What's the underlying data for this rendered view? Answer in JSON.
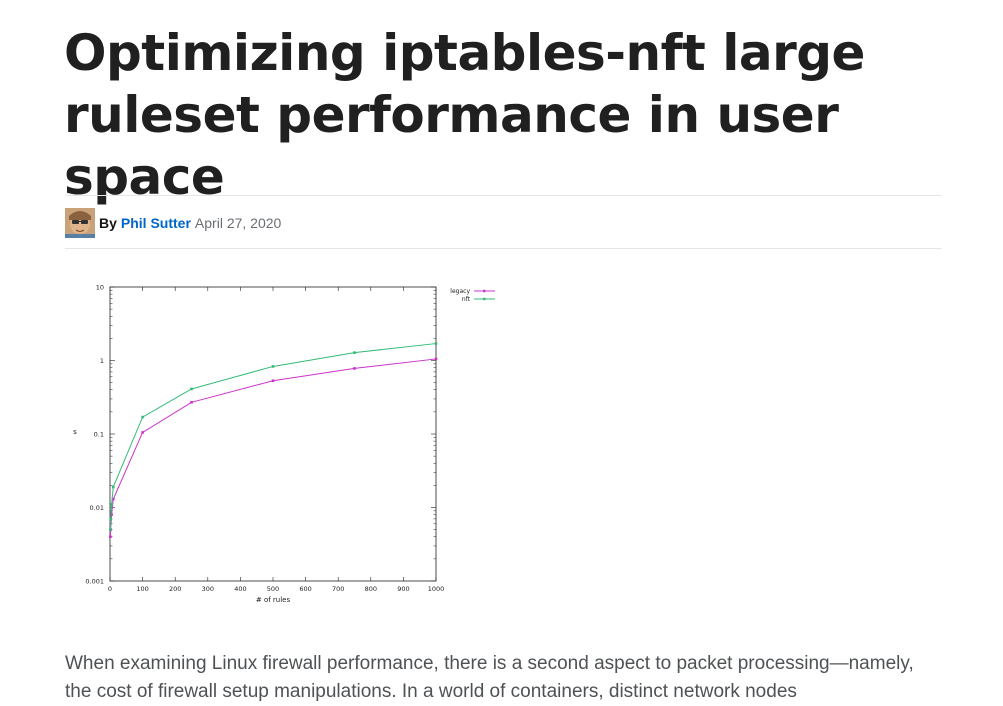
{
  "article": {
    "title": "Optimizing iptables-nft large ruleset performance in user space",
    "byline": {
      "by_label": "By",
      "author": "Phil Sutter",
      "date": "April 27, 2020"
    },
    "body_text": "When examining Linux firewall performance, there is a second aspect to packet processing—namely, the cost of firewall setup manipulations. In a world of containers, distinct network nodes"
  },
  "colors": {
    "legacy": "#cc33cc",
    "nft": "#33bb77",
    "link": "#0066cc"
  },
  "chart_data": {
    "type": "line",
    "title": "",
    "xlabel": "# of rules",
    "ylabel": "s",
    "y_scale": "log",
    "xlim": [
      0,
      1000
    ],
    "ylim": [
      0.001,
      10
    ],
    "x_ticks": [
      "0",
      "100",
      "200",
      "300",
      "400",
      "500",
      "600",
      "700",
      "800",
      "900",
      "1000"
    ],
    "y_ticks": [
      "0.001",
      "0.01",
      "0.1",
      "1",
      "10"
    ],
    "legend_position": "outside-top-right",
    "series": [
      {
        "name": "legacy",
        "x": [
          1,
          2,
          5,
          10,
          100,
          250,
          500,
          750,
          1000
        ],
        "y": [
          0.004,
          0.005,
          0.008,
          0.013,
          0.105,
          0.27,
          0.53,
          0.78,
          1.05
        ]
      },
      {
        "name": "nft",
        "x": [
          1,
          2,
          5,
          10,
          100,
          250,
          500,
          750,
          1000
        ],
        "y": [
          0.005,
          0.007,
          0.011,
          0.019,
          0.17,
          0.41,
          0.83,
          1.28,
          1.7
        ]
      }
    ]
  }
}
